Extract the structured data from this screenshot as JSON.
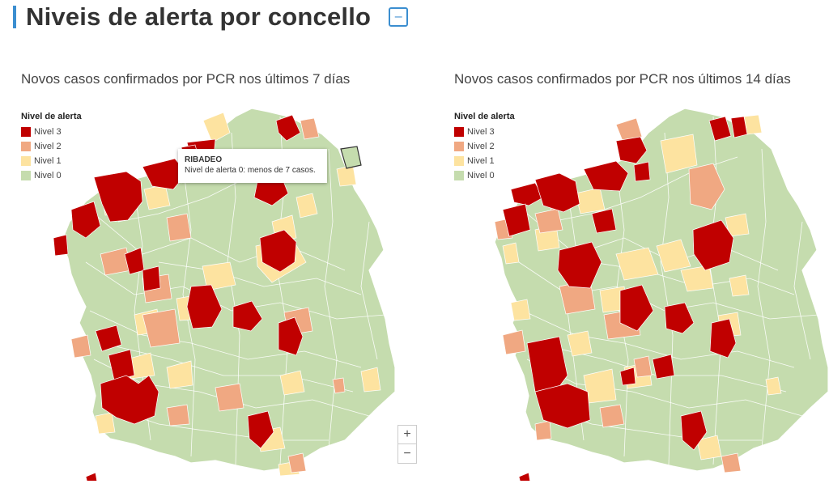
{
  "header": {
    "title": "Niveis de alerta por concello",
    "collapse_symbol": "–"
  },
  "colors": {
    "nivel3": "#c00000",
    "nivel2": "#f0a882",
    "nivel1": "#fde3a0",
    "nivel0": "#c5dcae",
    "border": "#ffffff",
    "accent": "#3b8ed0"
  },
  "legend": {
    "title": "Nivel de alerta",
    "items": [
      "Nivel 3",
      "Nivel 2",
      "Nivel 1",
      "Nivel 0"
    ]
  },
  "maps": [
    {
      "subtitle": "Novos casos confirmados por PCR nos últimos 7 días"
    },
    {
      "subtitle": "Novos casos confirmados por PCR nos últimos 14 días"
    }
  ],
  "tooltip": {
    "title": "RIBADEO",
    "text": "Nivel de alerta 0: menos de 7 casos."
  },
  "zoom": {
    "in": "+",
    "out": "−"
  }
}
